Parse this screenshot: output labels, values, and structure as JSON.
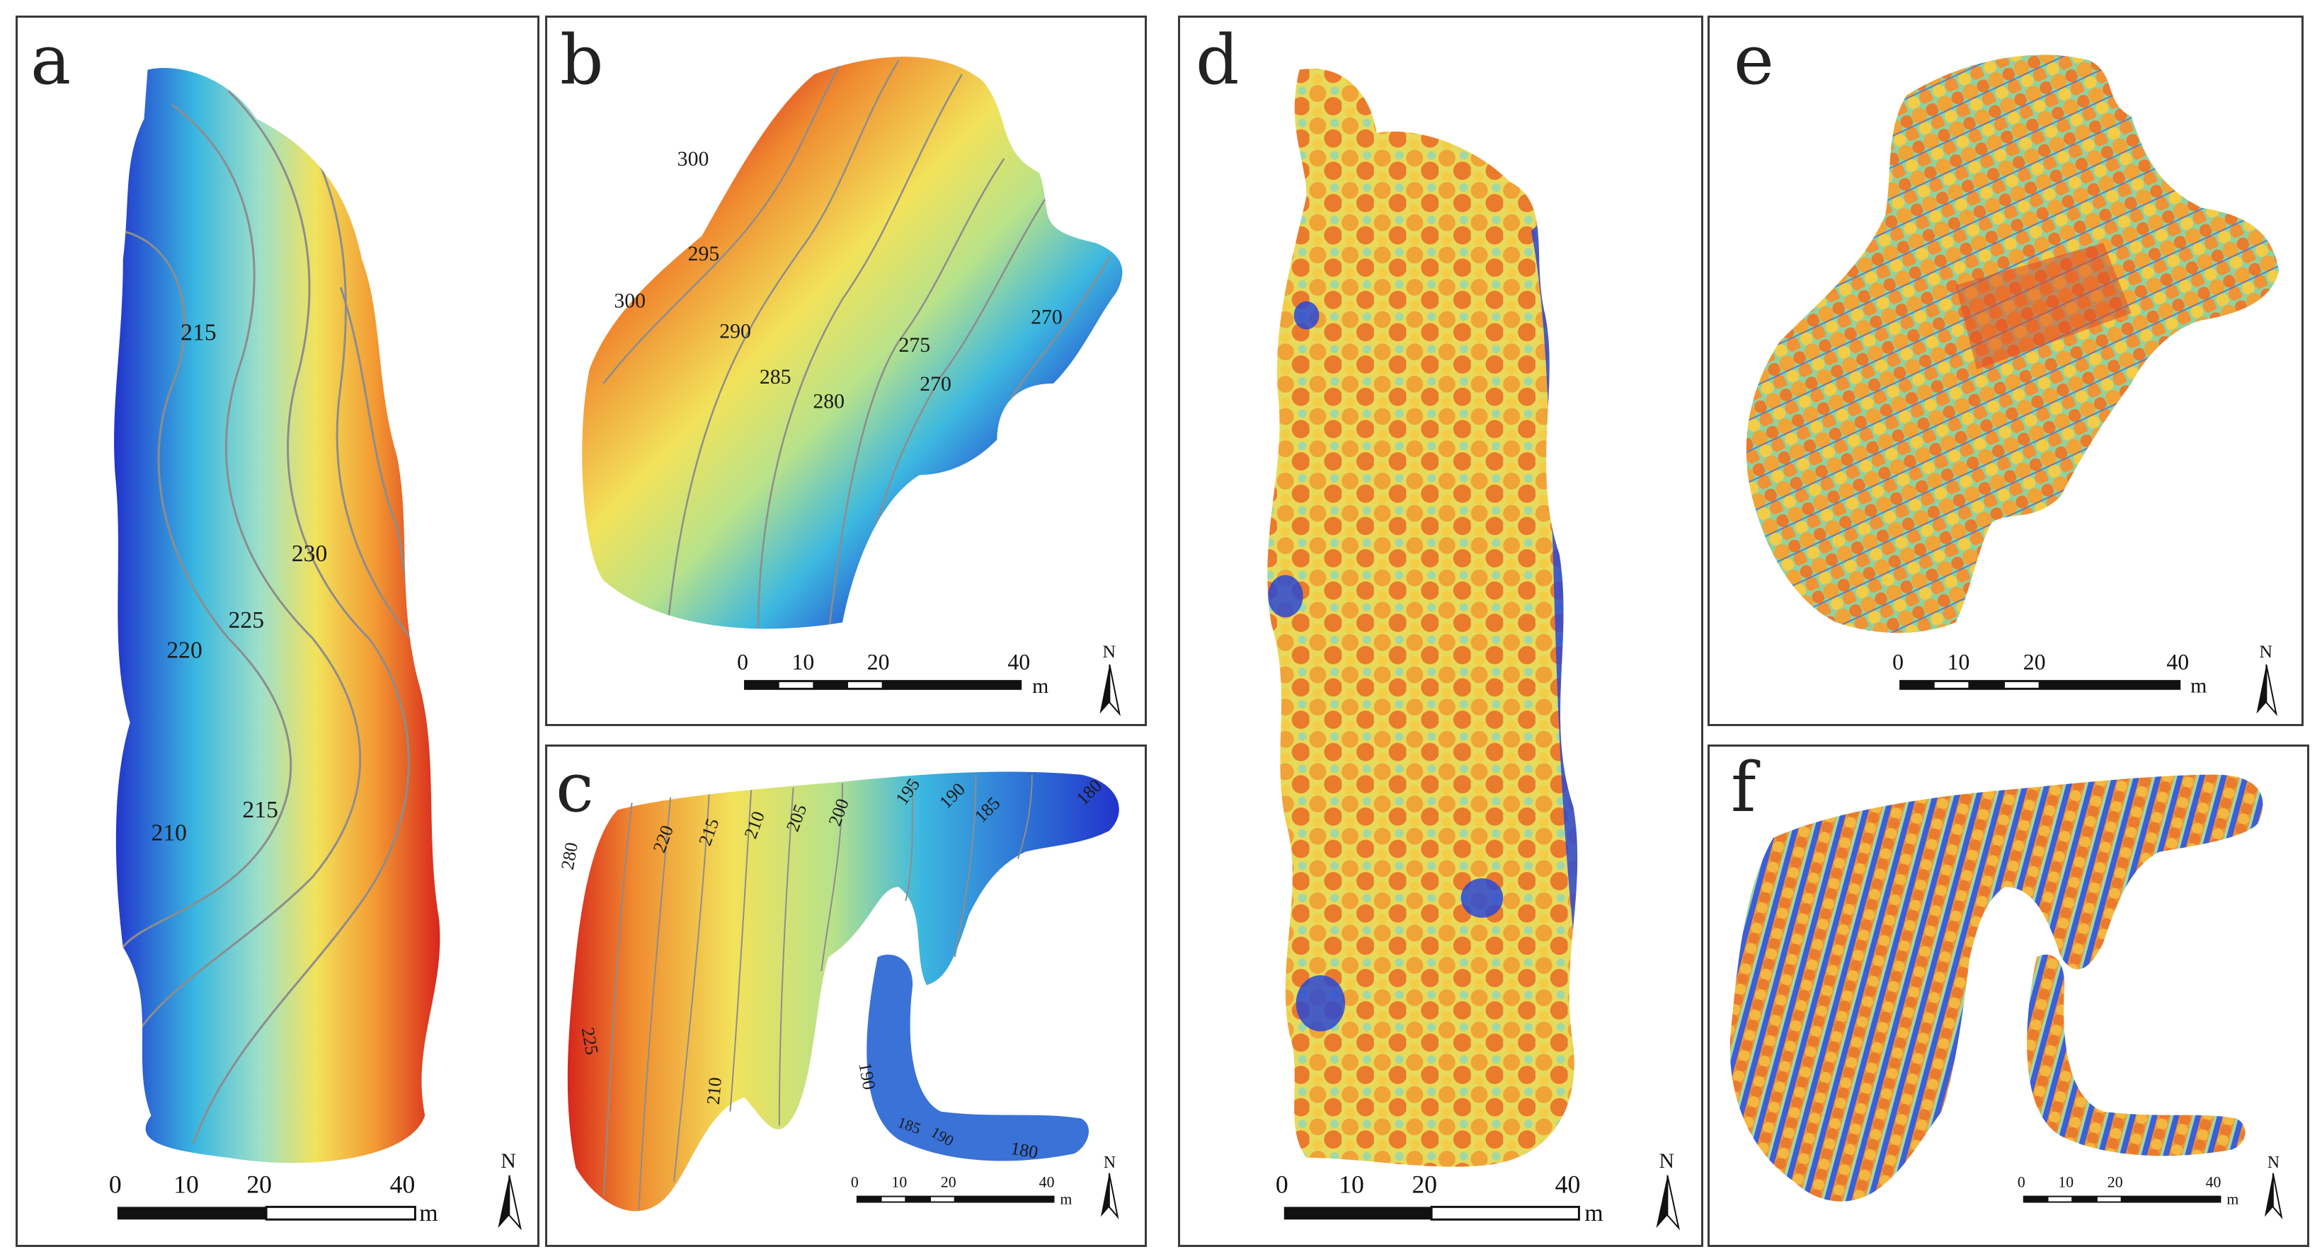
{
  "colors": {
    "frame": "#3a3a3a",
    "elev_low": "#2233cc",
    "elev_mid": "#f2e25a",
    "elev_high": "#d8261c",
    "contour": "#8d8d8d",
    "crown_fill": "#ea7a2c",
    "ground_fill": "#2a48d6"
  },
  "icons": {
    "north_arrow": "north-arrow-icon"
  },
  "panels": [
    {
      "label": "a",
      "type": "terrain",
      "contours": [
        "215",
        "230",
        "225",
        "220",
        "215",
        "210"
      ],
      "scale": {
        "ticks": [
          "0",
          "10",
          "20",
          "40"
        ],
        "unit": "m"
      },
      "north": "N"
    },
    {
      "label": "b",
      "type": "terrain",
      "contours": [
        "300",
        "295",
        "300",
        "290",
        "285",
        "280",
        "275",
        "270",
        "270"
      ],
      "scale": {
        "ticks": [
          "0",
          "10",
          "20",
          "40"
        ],
        "unit": "m"
      },
      "north": "N"
    },
    {
      "label": "c",
      "type": "terrain",
      "contours": [
        "280",
        "220",
        "215",
        "210",
        "205",
        "200",
        "195",
        "190",
        "185",
        "180",
        "225",
        "210",
        "190",
        "185",
        "190",
        "180"
      ],
      "scale": {
        "ticks": [
          "0",
          "10",
          "20",
          "40"
        ],
        "unit": "m"
      },
      "north": "N"
    },
    {
      "label": "d",
      "type": "canopy",
      "contours": [],
      "scale": {
        "ticks": [
          "0",
          "10",
          "20",
          "40"
        ],
        "unit": "m"
      },
      "north": "N"
    },
    {
      "label": "e",
      "type": "canopy",
      "contours": [],
      "scale": {
        "ticks": [
          "0",
          "10",
          "20",
          "40"
        ],
        "unit": "m"
      },
      "north": "N"
    },
    {
      "label": "f",
      "type": "canopy",
      "contours": [],
      "scale": {
        "ticks": [
          "0",
          "10",
          "20",
          "40"
        ],
        "unit": "m"
      },
      "north": "N"
    }
  ]
}
